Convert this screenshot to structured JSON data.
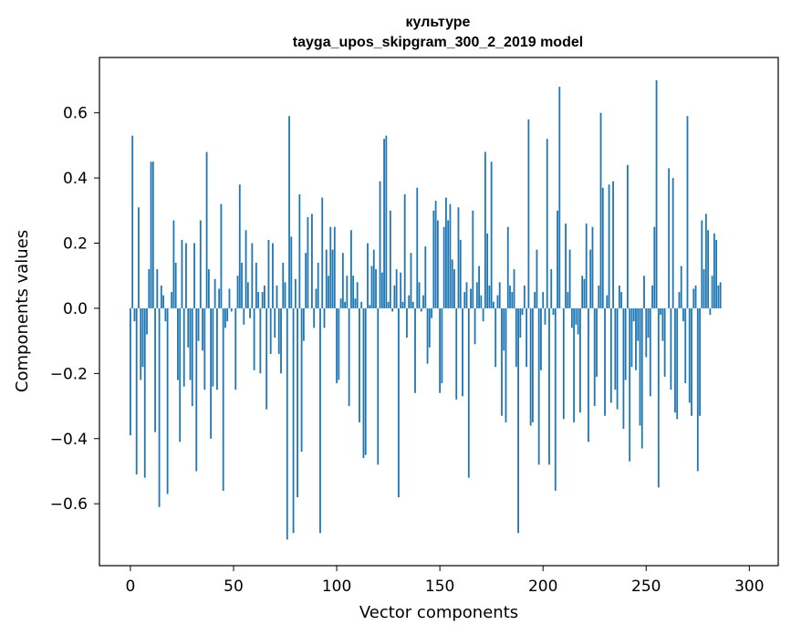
{
  "chart_data": {
    "type": "bar",
    "title_line1": "культуре",
    "title_line2": "tayga_upos_skipgram_300_2_2019 model",
    "xlabel": "Vector components",
    "ylabel": "Components values",
    "xlim": [
      -15,
      314
    ],
    "ylim": [
      -0.79,
      0.77
    ],
    "xticks": [
      0,
      50,
      100,
      150,
      200,
      250,
      300
    ],
    "xtick_labels": [
      "0",
      "50",
      "100",
      "150",
      "200",
      "250",
      "300"
    ],
    "yticks": [
      -0.6,
      -0.4,
      -0.2,
      0.0,
      0.2,
      0.4,
      0.6
    ],
    "ytick_labels": [
      "−0.6",
      "−0.4",
      "−0.2",
      "0.0",
      "0.2",
      "0.4",
      "0.6"
    ],
    "bar_color": "#1f77b4",
    "grid": false,
    "values": [
      -0.39,
      0.53,
      -0.04,
      -0.51,
      0.31,
      -0.22,
      -0.18,
      -0.52,
      -0.08,
      0.12,
      0.45,
      0.45,
      -0.38,
      0.12,
      -0.61,
      0.07,
      0.04,
      -0.04,
      -0.57,
      0.0,
      0.05,
      0.27,
      0.14,
      -0.22,
      -0.41,
      0.21,
      -0.24,
      0.2,
      -0.12,
      -0.22,
      -0.3,
      0.2,
      -0.5,
      -0.1,
      0.27,
      -0.13,
      -0.25,
      0.48,
      0.12,
      -0.4,
      -0.24,
      0.09,
      -0.25,
      0.06,
      0.32,
      -0.56,
      -0.06,
      -0.04,
      0.06,
      -0.01,
      0.0,
      -0.25,
      0.1,
      0.38,
      0.14,
      -0.05,
      0.24,
      0.08,
      -0.03,
      0.2,
      -0.19,
      0.14,
      0.05,
      -0.2,
      0.05,
      0.07,
      -0.31,
      0.21,
      -0.14,
      0.2,
      -0.09,
      0.07,
      -0.14,
      -0.2,
      0.14,
      0.08,
      -0.71,
      0.59,
      0.22,
      -0.69,
      0.09,
      -0.58,
      0.35,
      -0.44,
      -0.1,
      0.17,
      0.28,
      0.0,
      0.29,
      -0.06,
      0.06,
      0.14,
      -0.69,
      0.34,
      -0.06,
      0.18,
      0.1,
      0.25,
      0.18,
      0.25,
      -0.23,
      -0.22,
      0.03,
      0.17,
      0.02,
      0.1,
      -0.3,
      0.24,
      0.1,
      0.03,
      0.08,
      -0.35,
      0.02,
      -0.46,
      -0.45,
      0.2,
      0.01,
      0.13,
      0.18,
      0.12,
      -0.48,
      0.39,
      0.11,
      0.52,
      0.53,
      0.02,
      0.3,
      -0.01,
      0.07,
      0.12,
      -0.58,
      0.11,
      0.02,
      0.35,
      -0.09,
      0.04,
      0.17,
      0.02,
      -0.26,
      0.37,
      0.08,
      -0.01,
      0.04,
      0.19,
      -0.17,
      -0.12,
      -0.03,
      0.3,
      0.33,
      0.27,
      -0.26,
      -0.23,
      0.25,
      0.34,
      0.27,
      0.32,
      0.15,
      0.12,
      -0.28,
      0.31,
      0.21,
      -0.27,
      0.05,
      0.08,
      -0.52,
      0.06,
      0.3,
      -0.11,
      0.08,
      0.13,
      0.04,
      -0.04,
      0.48,
      0.23,
      0.07,
      0.45,
      0.02,
      -0.18,
      0.04,
      0.08,
      -0.33,
      -0.13,
      -0.35,
      0.25,
      0.07,
      0.05,
      0.12,
      -0.18,
      -0.69,
      -0.09,
      -0.02,
      0.07,
      -0.18,
      0.58,
      -0.36,
      -0.35,
      0.05,
      0.18,
      -0.48,
      -0.19,
      0.05,
      -0.05,
      0.52,
      -0.48,
      0.12,
      -0.02,
      -0.56,
      0.3,
      0.68,
      0.0,
      -0.34,
      0.26,
      0.05,
      0.18,
      -0.06,
      -0.35,
      -0.05,
      -0.08,
      -0.32,
      0.1,
      0.09,
      0.26,
      -0.41,
      0.18,
      0.25,
      -0.3,
      -0.21,
      0.07,
      0.6,
      0.37,
      -0.33,
      0.04,
      0.38,
      -0.29,
      0.39,
      -0.25,
      -0.31,
      0.07,
      0.05,
      -0.37,
      -0.22,
      0.44,
      -0.47,
      -0.18,
      -0.04,
      -0.19,
      -0.1,
      -0.36,
      -0.43,
      0.1,
      -0.15,
      -0.09,
      -0.27,
      0.07,
      0.25,
      0.7,
      -0.55,
      -0.02,
      -0.1,
      -0.21,
      0.0,
      0.43,
      -0.25,
      0.4,
      -0.32,
      -0.34,
      0.05,
      0.13,
      -0.04,
      -0.23,
      0.59,
      -0.29,
      -0.33,
      0.06,
      0.07,
      -0.5,
      -0.33,
      0.27,
      0.12,
      0.29,
      0.24,
      -0.02,
      0.1,
      0.23,
      0.21,
      0.07,
      0.08
    ]
  }
}
